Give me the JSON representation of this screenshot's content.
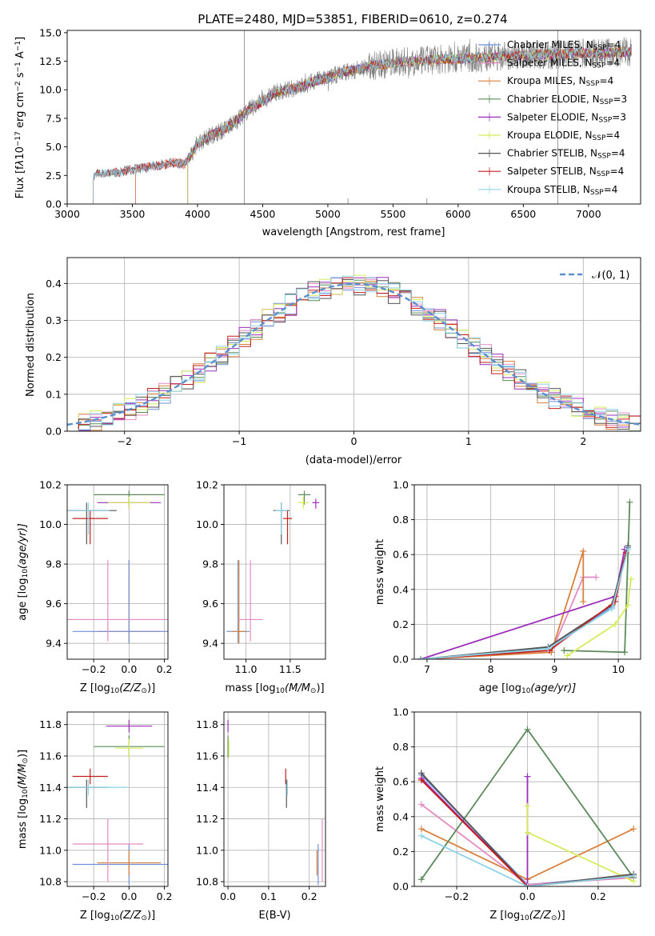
{
  "figure": {
    "title": "PLATE=2480, MJD=53851, FIBERID=0610, z=0.274"
  },
  "colors": {
    "Chabrier MILES": "#6f8fd6",
    "Salpeter MILES": "#e48ac2",
    "Kroupa MILES": "#d9803d",
    "Chabrier ELODIE": "#5c8a5c",
    "Salpeter ELODIE": "#9b2fb8",
    "Kroupa ELODIE": "#d7ea5a",
    "Chabrier STELIB": "#555555",
    "Salpeter STELIB": "#c41f1f",
    "Kroupa STELIB": "#8fd3e8",
    "data": "#808080",
    "normal_curve": "#5a8fd0",
    "grid": "#b0b0b0"
  },
  "chart_data": [
    {
      "id": "spectrum",
      "type": "line",
      "title": "PLATE=2480, MJD=53851, FIBERID=0610, z=0.274",
      "xlabel": "wavelength [Angstrom, rest frame]",
      "ylabel": "Flux [f",
      "ylabel_parts": [
        "Flux [f",
        "λ",
        "10",
        "−17",
        " erg cm",
        "−2",
        " s",
        "−1",
        " A",
        "−1",
        "]"
      ],
      "xlim": [
        3000,
        7400
      ],
      "ylim": [
        0,
        15.2
      ],
      "xticks": [
        3000,
        3500,
        4000,
        4500,
        5000,
        5500,
        6000,
        6500,
        7000
      ],
      "yticks": [
        0.0,
        2.5,
        5.0,
        7.5,
        10.0,
        12.5,
        15.0
      ],
      "grid": false,
      "legend_position": "top-right",
      "legend": [
        {
          "label": "Chabrier MILES, N",
          "sub": "SSP",
          "tail": "=4"
        },
        {
          "label": "Salpeter MILES, N",
          "sub": "SSP",
          "tail": "=4"
        },
        {
          "label": "Kroupa MILES, N",
          "sub": "SSP",
          "tail": "=4"
        },
        {
          "label": "Chabrier ELODIE, N",
          "sub": "SSP",
          "tail": "=3"
        },
        {
          "label": "Salpeter ELODIE, N",
          "sub": "SSP",
          "tail": "=3"
        },
        {
          "label": "Kroupa ELODIE, N",
          "sub": "SSP",
          "tail": "=4"
        },
        {
          "label": "Chabrier STELIB, N",
          "sub": "SSP",
          "tail": "=4"
        },
        {
          "label": "Salpeter STELIB, N",
          "sub": "SSP",
          "tail": "=4"
        },
        {
          "label": "Kroupa STELIB, N",
          "sub": "SSP",
          "tail": "=4"
        }
      ],
      "model_continuum": {
        "x": [
          3200,
          3300,
          3400,
          3500,
          3600,
          3700,
          3800,
          3900,
          3950,
          4000,
          4100,
          4200,
          4300,
          4400,
          4500,
          4600,
          4700,
          4800,
          4900,
          5000,
          5100,
          5200,
          5300,
          5400,
          5500,
          5600,
          5700,
          5800,
          5900,
          6000,
          6100,
          6200,
          6300,
          6400,
          6500,
          6600,
          6700,
          6800,
          6900,
          7000,
          7100,
          7200,
          7300
        ],
        "y": [
          2.5,
          2.7,
          2.8,
          3.0,
          3.2,
          3.4,
          3.6,
          3.5,
          4.3,
          5.3,
          6.0,
          6.5,
          7.3,
          8.3,
          9.0,
          9.8,
          10.0,
          10.3,
          10.8,
          11.0,
          11.5,
          11.7,
          12.0,
          12.2,
          12.3,
          12.5,
          12.5,
          12.6,
          12.7,
          12.7,
          12.8,
          12.8,
          12.9,
          13.0,
          13.0,
          13.1,
          13.1,
          13.1,
          13.2,
          13.2,
          13.2,
          13.3,
          13.3
        ]
      },
      "model_start_x": {
        "Chabrier MILES": 3525,
        "Salpeter MILES": 3525,
        "Kroupa MILES": 3525,
        "Chabrier ELODIE": 3925,
        "Salpeter ELODIE": 3925,
        "Kroupa ELODIE": 3925,
        "Chabrier STELIB": 3200,
        "Salpeter STELIB": 3200,
        "Kroupa STELIB": 3200
      },
      "spikes": [
        [
          4360,
          15.2
        ],
        [
          5155,
          0.5
        ],
        [
          5760,
          0.5
        ],
        [
          6765,
          15.2
        ]
      ]
    },
    {
      "id": "residuals",
      "type": "histogram",
      "xlabel": "(data-model)/error",
      "ylabel": "Normed distribution",
      "xlim": [
        -2.5,
        2.5
      ],
      "ylim": [
        0,
        0.47
      ],
      "xticks": [
        -2,
        -1,
        0,
        1,
        2
      ],
      "yticks": [
        0.0,
        0.1,
        0.2,
        0.3,
        0.4
      ],
      "grid": true,
      "legend_position": "top-right",
      "legend": [
        {
          "label": "𝒩(0, 1)"
        }
      ],
      "bin_width": 0.1,
      "bin_start": -2.5,
      "normal_curve": {
        "mean": 0,
        "sigma": 1
      }
    },
    {
      "id": "age_vs_Z",
      "type": "errorbar",
      "xlabel": "Z [log",
      "xlabel_parts": [
        "Z [log",
        "10",
        "(Z/Z",
        "⊙",
        ")]"
      ],
      "ylabel_parts": [
        "age  [log",
        "10",
        "(age/yr)]"
      ],
      "xlim": [
        -0.35,
        0.22
      ],
      "ylim": [
        9.32,
        10.2
      ],
      "xticks": [
        -0.2,
        0.0,
        0.2
      ],
      "yticks": [
        9.4,
        9.6,
        9.8,
        10.0,
        10.2
      ],
      "grid": true,
      "points": [
        {
          "series": "Kroupa MILES",
          "x": 0.0,
          "y": 9.46,
          "xerr": 0.18,
          "yerr": [
            0.06,
            0.36
          ]
        },
        {
          "series": "Chabrier MILES",
          "x": 0.0,
          "y": 9.46,
          "xerr": 0.32,
          "yerr": [
            0.06,
            0.36
          ]
        },
        {
          "series": "Salpeter MILES",
          "x": -0.12,
          "y": 9.52,
          "xerr": 0.34,
          "yerr": [
            0.11,
            0.3
          ]
        },
        {
          "series": "Chabrier STELIB",
          "x": -0.24,
          "y": 10.07,
          "xerr": 0.17,
          "yerr": [
            0.17,
            0.04
          ]
        },
        {
          "series": "Salpeter STELIB",
          "x": -0.22,
          "y": 10.03,
          "xerr": 0.1,
          "yerr": [
            0.13,
            0.04
          ]
        },
        {
          "series": "Kroupa STELIB",
          "x": -0.23,
          "y": 10.07,
          "xerr": 0.12,
          "yerr": [
            0.12,
            0.04
          ]
        },
        {
          "series": "Chabrier ELODIE",
          "x": 0.0,
          "y": 10.15,
          "xerr": 0.2,
          "yerr": [
            0.05,
            0.02
          ]
        },
        {
          "series": "Salpeter ELODIE",
          "x": 0.0,
          "y": 10.11,
          "xerr": 0.18,
          "yerr": [
            0.03,
            0.02
          ]
        },
        {
          "series": "Kroupa ELODIE",
          "x": 0.0,
          "y": 10.11,
          "xerr": 0.12,
          "yerr": [
            0.03,
            0.03
          ]
        }
      ]
    },
    {
      "id": "age_vs_mass",
      "type": "errorbar",
      "xlabel_parts": [
        "mass [log",
        "10",
        "(M/M",
        "⊙",
        ")]"
      ],
      "xlim": [
        10.75,
        11.9
      ],
      "ylim": [
        9.32,
        10.2
      ],
      "xticks": [
        11.0,
        11.5
      ],
      "yticks": [
        9.4,
        9.6,
        9.8,
        10.0,
        10.2
      ],
      "grid": true,
      "points": [
        {
          "series": "Chabrier MILES",
          "x": 10.91,
          "y": 9.46,
          "xerr": 0.13,
          "yerr": [
            0.06,
            0.36
          ]
        },
        {
          "series": "Kroupa MILES",
          "x": 10.92,
          "y": 9.46,
          "xerr": 0.08,
          "yerr": [
            0.06,
            0.36
          ]
        },
        {
          "series": "Salpeter MILES",
          "x": 11.05,
          "y": 9.52,
          "xerr": 0.14,
          "yerr": [
            0.11,
            0.3
          ]
        },
        {
          "series": "Chabrier STELIB",
          "x": 11.4,
          "y": 10.07,
          "xerr": 0.09,
          "yerr": [
            0.17,
            0.04
          ]
        },
        {
          "series": "Salpeter STELIB",
          "x": 11.47,
          "y": 10.03,
          "xerr": 0.05,
          "yerr": [
            0.13,
            0.04
          ]
        },
        {
          "series": "Kroupa STELIB",
          "x": 11.4,
          "y": 10.07,
          "xerr": 0.07,
          "yerr": [
            0.12,
            0.04
          ]
        },
        {
          "series": "Chabrier ELODIE",
          "x": 11.66,
          "y": 10.15,
          "xerr": 0.07,
          "yerr": [
            0.05,
            0.02
          ]
        },
        {
          "series": "Salpeter ELODIE",
          "x": 11.79,
          "y": 10.11,
          "xerr": 0.04,
          "yerr": [
            0.03,
            0.02
          ]
        },
        {
          "series": "Kroupa ELODIE",
          "x": 11.65,
          "y": 10.11,
          "xerr": 0.06,
          "yerr": [
            0.03,
            0.03
          ]
        }
      ]
    },
    {
      "id": "weight_vs_age",
      "type": "line",
      "xlabel_parts": [
        "age  [log",
        "10",
        "(age/yr)]"
      ],
      "ylabel": "mass weight",
      "xlim": [
        6.8,
        10.35
      ],
      "ylim": [
        0,
        1.0
      ],
      "xticks": [
        7,
        8,
        9,
        10
      ],
      "yticks": [
        0.0,
        0.2,
        0.4,
        0.6,
        0.8,
        1.0
      ],
      "grid": true,
      "series": [
        {
          "name": "Chabrier MILES",
          "x": [
            6.9,
            8.9,
            9.9,
            10.15
          ],
          "y": [
            0.0,
            0.06,
            0.3,
            0.64
          ]
        },
        {
          "name": "Salpeter MILES",
          "x": [
            8.95,
            9.45,
            9.65
          ],
          "y": [
            0.04,
            0.47,
            0.47
          ]
        },
        {
          "name": "Kroupa MILES",
          "x": [
            6.9,
            8.95,
            9.45,
            9.45
          ],
          "y": [
            0.0,
            0.04,
            0.62,
            0.33
          ]
        },
        {
          "name": "Chabrier ELODIE",
          "x": [
            9.15,
            10.1,
            10.18
          ],
          "y": [
            0.05,
            0.04,
            0.9
          ]
        },
        {
          "name": "Salpeter ELODIE",
          "x": [
            6.9,
            9.95,
            10.1
          ],
          "y": [
            0.0,
            0.36,
            0.63
          ]
        },
        {
          "name": "Kroupa ELODIE",
          "x": [
            9.2,
            9.95,
            10.15,
            10.2
          ],
          "y": [
            0.02,
            0.2,
            0.31,
            0.46
          ]
        },
        {
          "name": "Chabrier STELIB",
          "x": [
            6.9,
            8.9,
            9.9,
            10.15
          ],
          "y": [
            0.0,
            0.07,
            0.31,
            0.65
          ]
        },
        {
          "name": "Salpeter STELIB",
          "x": [
            6.9,
            8.92,
            9.95,
            10.12
          ],
          "y": [
            0.0,
            0.05,
            0.33,
            0.61
          ]
        },
        {
          "name": "Kroupa STELIB",
          "x": [
            6.9,
            8.9,
            9.9,
            10.15
          ],
          "y": [
            0.0,
            0.06,
            0.29,
            0.63
          ]
        }
      ]
    },
    {
      "id": "mass_vs_Z",
      "type": "errorbar",
      "xlabel_parts": [
        "Z [log",
        "10",
        "(Z/Z",
        "⊙",
        ")]"
      ],
      "ylabel_parts": [
        "mass [log",
        "10",
        "(M/M",
        "⊙",
        ")]"
      ],
      "xlim": [
        -0.35,
        0.22
      ],
      "ylim": [
        10.77,
        11.88
      ],
      "xticks": [
        -0.2,
        0.0,
        0.2
      ],
      "yticks": [
        10.8,
        11.0,
        11.2,
        11.4,
        11.6,
        11.8
      ],
      "grid": true,
      "points": [
        {
          "series": "Chabrier MILES",
          "x": 0.0,
          "y": 10.91,
          "xerr": 0.32,
          "yerr": [
            0.13,
            0.13
          ]
        },
        {
          "series": "Kroupa MILES",
          "x": 0.0,
          "y": 10.92,
          "xerr": 0.18,
          "yerr": [
            0.08,
            0.08
          ]
        },
        {
          "series": "Salpeter MILES",
          "x": -0.12,
          "y": 11.04,
          "xerr": 0.2,
          "yerr": [
            0.24,
            0.16
          ]
        },
        {
          "series": "Chabrier STELIB",
          "x": -0.24,
          "y": 11.4,
          "xerr": 0.12,
          "yerr": [
            0.13,
            0.05
          ]
        },
        {
          "series": "Salpeter STELIB",
          "x": -0.22,
          "y": 11.47,
          "xerr": 0.1,
          "yerr": [
            0.05,
            0.05
          ]
        },
        {
          "series": "Kroupa STELIB",
          "x": -0.23,
          "y": 11.4,
          "xerr": 0.22,
          "yerr": [
            0.05,
            0.05
          ]
        },
        {
          "series": "Chabrier ELODIE",
          "x": 0.0,
          "y": 11.66,
          "xerr": 0.2,
          "yerr": [
            0.07,
            0.07
          ]
        },
        {
          "series": "Salpeter ELODIE",
          "x": 0.0,
          "y": 11.79,
          "xerr": 0.13,
          "yerr": [
            0.04,
            0.04
          ]
        },
        {
          "series": "Kroupa ELODIE",
          "x": 0.0,
          "y": 11.65,
          "xerr": 0.08,
          "yerr": [
            0.06,
            0.06
          ]
        }
      ]
    },
    {
      "id": "mass_vs_EBV",
      "type": "errorbar",
      "xlabel": "E(B-V)",
      "xlim": [
        -0.01,
        0.24
      ],
      "ylim": [
        10.77,
        11.88
      ],
      "xticks": [
        0.0,
        0.1,
        0.2
      ],
      "yticks": [
        10.8,
        11.0,
        11.2,
        11.4,
        11.6,
        11.8
      ],
      "grid": true,
      "points": [
        {
          "series": "Chabrier MILES",
          "x": 0.222,
          "y": 10.91,
          "xerr": 0.0,
          "yerr": [
            0.13,
            0.13
          ]
        },
        {
          "series": "Kroupa MILES",
          "x": 0.219,
          "y": 10.92,
          "xerr": 0.0,
          "yerr": [
            0.08,
            0.08
          ]
        },
        {
          "series": "Salpeter MILES",
          "x": 0.232,
          "y": 11.04,
          "xerr": 0.0,
          "yerr": [
            0.24,
            0.16
          ]
        },
        {
          "series": "Chabrier STELIB",
          "x": 0.144,
          "y": 11.4,
          "xerr": 0.0,
          "yerr": [
            0.13,
            0.05
          ]
        },
        {
          "series": "Salpeter STELIB",
          "x": 0.142,
          "y": 11.47,
          "xerr": 0.0,
          "yerr": [
            0.05,
            0.05
          ]
        },
        {
          "series": "Kroupa STELIB",
          "x": 0.146,
          "y": 11.4,
          "xerr": 0.0,
          "yerr": [
            0.05,
            0.05
          ]
        },
        {
          "series": "Chabrier ELODIE",
          "x": 0.0,
          "y": 11.66,
          "xerr": 0.0,
          "yerr": [
            0.07,
            0.07
          ]
        },
        {
          "series": "Salpeter ELODIE",
          "x": 0.0,
          "y": 11.79,
          "xerr": 0.0,
          "yerr": [
            0.04,
            0.04
          ]
        },
        {
          "series": "Kroupa ELODIE",
          "x": 0.002,
          "y": 11.65,
          "xerr": 0.0,
          "yerr": [
            0.06,
            0.06
          ]
        }
      ]
    },
    {
      "id": "weight_vs_Z",
      "type": "line",
      "xlabel_parts": [
        "Z [log",
        "10",
        "(Z/Z",
        "⊙",
        ")]"
      ],
      "ylabel": "mass weight",
      "xlim": [
        -0.32,
        0.32
      ],
      "ylim": [
        0,
        1.0
      ],
      "xticks": [
        -0.2,
        0.0,
        0.2
      ],
      "yticks": [
        0.0,
        0.2,
        0.4,
        0.6,
        0.8,
        1.0
      ],
      "grid": true,
      "series": [
        {
          "name": "Chabrier MILES",
          "x": [
            -0.3,
            0.0,
            0.3
          ],
          "y": [
            0.64,
            0.01,
            0.06
          ]
        },
        {
          "name": "Salpeter MILES",
          "x": [
            -0.3,
            0.0,
            0.3
          ],
          "y": [
            0.47,
            0.01,
            0.05
          ]
        },
        {
          "name": "Kroupa MILES",
          "x": [
            -0.3,
            0.0,
            0.3
          ],
          "y": [
            0.33,
            0.04,
            0.33
          ]
        },
        {
          "name": "Chabrier ELODIE",
          "x": [
            -0.3,
            0.0,
            0.3
          ],
          "y": [
            0.04,
            0.9,
            0.05
          ]
        },
        {
          "name": "Salpeter ELODIE",
          "x": [
            -0.3,
            0.0,
            0.0
          ],
          "y": [
            0.62,
            0.0,
            0.63
          ]
        },
        {
          "name": "Kroupa ELODIE",
          "x": [
            0.0,
            0.0,
            0.3
          ],
          "y": [
            0.46,
            0.31,
            0.03
          ]
        },
        {
          "name": "Chabrier STELIB",
          "x": [
            -0.3,
            0.0,
            0.3
          ],
          "y": [
            0.65,
            0.0,
            0.07
          ]
        },
        {
          "name": "Salpeter STELIB",
          "x": [
            -0.3,
            0.0,
            0.3
          ],
          "y": [
            0.61,
            0.0,
            0.06
          ]
        },
        {
          "name": "Kroupa STELIB",
          "x": [
            -0.3,
            0.0,
            0.3
          ],
          "y": [
            0.29,
            0.0,
            0.06
          ]
        }
      ]
    }
  ]
}
